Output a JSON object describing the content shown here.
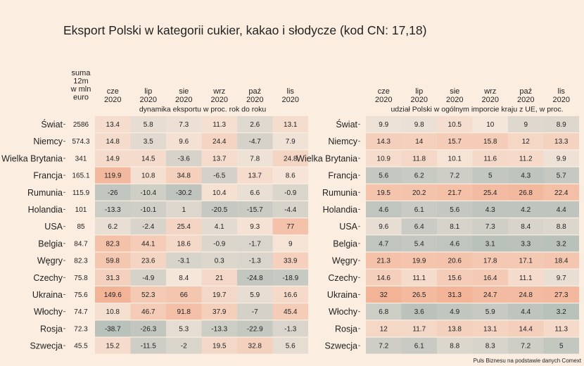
{
  "chart_data": {
    "type": "heatmap",
    "title": "Eksport Polski w kategorii cukier, kakao i słodycze (kod CN: 17,18)",
    "source": "Puls Biznesu na podstawie danych Comext",
    "rows": [
      "Świat",
      "Niemcy",
      "Wielka Brytania",
      "Francja",
      "Rumunia",
      "Holandia",
      "USA",
      "Belgia",
      "Węgry",
      "Czechy",
      "Ukraina",
      "Włochy",
      "Rosja",
      "Szwecja"
    ],
    "sum_header": [
      "suma",
      "12m",
      "w mln",
      "euro"
    ],
    "sum_values": [
      "2586",
      "574.3",
      "341",
      "165.1",
      "115.9",
      "101",
      "85",
      "84.7",
      "82.3",
      "75.8",
      "75.6",
      "74.7",
      "72.3",
      "45.5"
    ],
    "columns": [
      [
        "cze",
        "2020"
      ],
      [
        "lip",
        "2020"
      ],
      [
        "sie",
        "2020"
      ],
      [
        "wrz",
        "2020"
      ],
      [
        "paź",
        "2020"
      ],
      [
        "lis",
        "2020"
      ]
    ],
    "panels": [
      {
        "subtitle": "dynamika eksportu w proc. rok do roku",
        "values": [
          [
            "13.4",
            "5.8",
            "7.3",
            "11.3",
            "2.6",
            "13.1"
          ],
          [
            "14.8",
            "3.5",
            "9.6",
            "24.4",
            "-4.7",
            "7.9"
          ],
          [
            "14.9",
            "14.5",
            "-3.6",
            "13.7",
            "7.8",
            "24.8"
          ],
          [
            "119.9",
            "10.8",
            "34.8",
            "-6.5",
            "13.7",
            "8.6"
          ],
          [
            "-26",
            "-10.4",
            "-30.2",
            "10.4",
            "6.6",
            "-0.9"
          ],
          [
            "-13.3",
            "-10.1",
            "1",
            "-20.5",
            "-15.7",
            "-4.4"
          ],
          [
            "6.2",
            "-2.4",
            "25.4",
            "4.1",
            "9.3",
            "77"
          ],
          [
            "82.3",
            "44.1",
            "18.6",
            "-0.9",
            "-1.7",
            "9"
          ],
          [
            "59.8",
            "23.6",
            "-3.1",
            "0.3",
            "-1.3",
            "33.9"
          ],
          [
            "31.3",
            "-4.9",
            "8.4",
            "21",
            "-24.8",
            "-18.9"
          ],
          [
            "149.6",
            "52.3",
            "66",
            "19.7",
            "5.9",
            "16.6"
          ],
          [
            "10.8",
            "46.7",
            "91.8",
            "37.9",
            "-7",
            "45.4"
          ],
          [
            "-38.7",
            "-26.3",
            "5.3",
            "-13.3",
            "-22.9",
            "-1.3"
          ],
          [
            "15.2",
            "-11.5",
            "-2",
            "19.5",
            "32.8",
            "5.6"
          ]
        ]
      },
      {
        "subtitle": "udział Polski w ogólnym imporcie kraju z UE, w proc.",
        "values": [
          [
            "9.9",
            "9.8",
            "10.5",
            "10",
            "9",
            "8.9"
          ],
          [
            "14.3",
            "14",
            "15.7",
            "15.8",
            "12",
            "13.3"
          ],
          [
            "10.9",
            "11.8",
            "10.1",
            "11.6",
            "11.2",
            "9.9"
          ],
          [
            "5.6",
            "6.2",
            "7.2",
            "5",
            "4.3",
            "5.7"
          ],
          [
            "19.5",
            "20.2",
            "21.7",
            "25.4",
            "26.8",
            "22.4"
          ],
          [
            "4.6",
            "6.1",
            "5.6",
            "4.3",
            "4.2",
            "4.4"
          ],
          [
            "9.6",
            "6.4",
            "8.1",
            "7.3",
            "8.4",
            "8.8"
          ],
          [
            "4.7",
            "5.4",
            "4.6",
            "3.1",
            "3.3",
            "3.2"
          ],
          [
            "21.3",
            "19.9",
            "20.6",
            "17.8",
            "17.1",
            "18.4"
          ],
          [
            "14.6",
            "11.1",
            "15.6",
            "16.4",
            "11.1",
            "9.7"
          ],
          [
            "32",
            "26.5",
            "31.3",
            "24.7",
            "24.8",
            "27.3"
          ],
          [
            "6.8",
            "3.6",
            "4.9",
            "5.9",
            "4.4",
            "3.2"
          ],
          [
            "12",
            "11.7",
            "13.8",
            "13.1",
            "14.4",
            "11.3"
          ],
          [
            "7.2",
            "6.1",
            "8.8",
            "8.3",
            "7.2",
            "5"
          ]
        ]
      }
    ],
    "colors": {
      "background": "#fbeee1",
      "low": "#b9c1bb",
      "neutral": "#f5e6da",
      "high": "#f3b396",
      "text": "#222222"
    }
  }
}
